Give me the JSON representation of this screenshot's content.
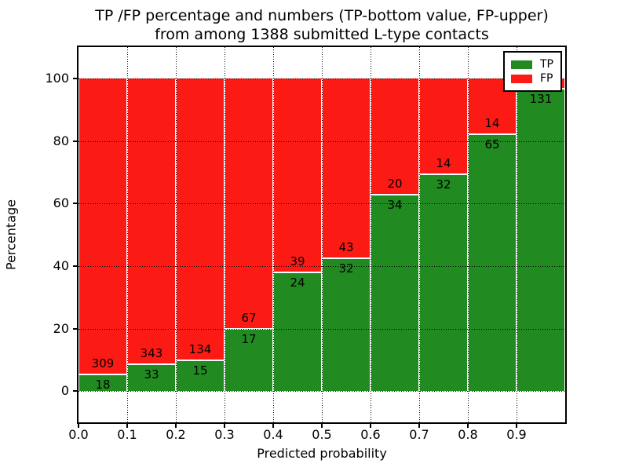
{
  "title": {
    "line1": "TP /FP percentage and numbers (TP-bottom value, FP-upper)",
    "line2": "from among 1388 submitted L-type contacts"
  },
  "axes": {
    "x_label": "Predicted probability",
    "y_label": "Percentage",
    "x_tick_labels": [
      "0.0",
      "0.1",
      "0.2",
      "0.3",
      "0.4",
      "0.5",
      "0.6",
      "0.7",
      "0.8",
      "0.9"
    ],
    "y_tick_labels": [
      "0",
      "20",
      "40",
      "60",
      "80",
      "100"
    ],
    "y_tick_values": [
      0,
      20,
      40,
      60,
      80,
      100
    ]
  },
  "legend": {
    "items": [
      {
        "label": "TP",
        "color": "#218a21"
      },
      {
        "label": "FP",
        "color": "#fc1a15"
      }
    ],
    "position": "upper right"
  },
  "colors": {
    "tp_green": "#218a21",
    "fp_red": "#fc1a15",
    "grid": "#000000",
    "bar_edge": "#ffffff"
  },
  "chart_data": {
    "type": "bar",
    "stacked": true,
    "normalized_to_percent": true,
    "title": "TP /FP percentage and numbers (TP-bottom value, FP-upper) from among 1388 submitted L-type contacts",
    "total_contacts_in_title": 1388,
    "xlabel": "Predicted probability",
    "ylabel": "Percentage",
    "xlim": [
      0.0,
      1.0
    ],
    "ylim": [
      -10,
      110
    ],
    "grid": true,
    "bin_width": 0.1,
    "categories": [
      "0.0-0.1",
      "0.1-0.2",
      "0.2-0.3",
      "0.3-0.4",
      "0.4-0.5",
      "0.5-0.6",
      "0.6-0.7",
      "0.7-0.8",
      "0.8-0.9",
      "0.9-1.0"
    ],
    "series": [
      {
        "name": "TP",
        "color": "#218a21",
        "counts": [
          18,
          33,
          15,
          17,
          24,
          32,
          34,
          32,
          65,
          131
        ],
        "percent": [
          5.5,
          8.78,
          10.07,
          20.24,
          38.1,
          42.67,
          62.96,
          69.57,
          82.28,
          97.04
        ]
      },
      {
        "name": "FP",
        "color": "#fc1a15",
        "counts": [
          309,
          343,
          134,
          67,
          39,
          43,
          20,
          14,
          14,
          null
        ],
        "percent": [
          94.5,
          91.22,
          89.93,
          79.76,
          61.9,
          57.33,
          37.04,
          30.43,
          17.72,
          2.96
        ]
      }
    ],
    "annotation_note": "TP count shown just below each green/red boundary, FP count just above; FP count label of last bar is hidden behind the legend"
  }
}
